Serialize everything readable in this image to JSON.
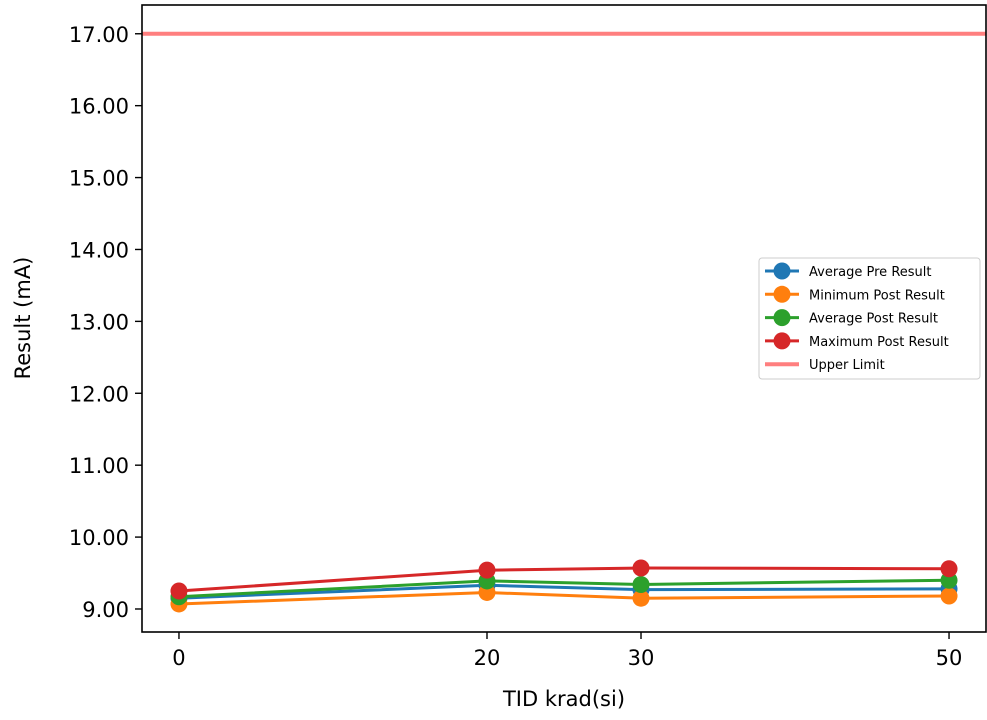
{
  "chart_data": {
    "type": "line",
    "xlabel": "TID krad(si)",
    "ylabel": "Result (mA)",
    "x": [
      0,
      20,
      30,
      50
    ],
    "x_ticks": [
      0,
      20,
      30,
      50
    ],
    "x_tick_labels": [
      "0",
      "20",
      "30",
      "50"
    ],
    "y_ticks": [
      9,
      10,
      11,
      12,
      13,
      14,
      15,
      16,
      17
    ],
    "y_tick_labels": [
      "9.00",
      "10.00",
      "11.00",
      "12.00",
      "13.00",
      "14.00",
      "15.00",
      "16.00",
      "17.00"
    ],
    "xlim": [
      -2.4,
      52.4
    ],
    "ylim": [
      8.68,
      17.4
    ],
    "grid": false,
    "legend_position": "center-right",
    "series": [
      {
        "name": "Average Pre Result",
        "color": "#1f77b4",
        "values": [
          9.15,
          9.33,
          9.27,
          9.28
        ],
        "marker": "circle"
      },
      {
        "name": "Minimum Post Result",
        "color": "#ff7f0e",
        "values": [
          9.07,
          9.23,
          9.15,
          9.18
        ],
        "marker": "circle"
      },
      {
        "name": "Average Post Result",
        "color": "#2ca02c",
        "values": [
          9.17,
          9.39,
          9.34,
          9.4
        ],
        "marker": "circle"
      },
      {
        "name": "Maximum Post Result",
        "color": "#d62728",
        "values": [
          9.25,
          9.54,
          9.57,
          9.56
        ],
        "marker": "circle"
      }
    ],
    "reference_lines": [
      {
        "name": "Upper Limit",
        "color": "#ff7f7f",
        "value": 17.0
      }
    ]
  }
}
